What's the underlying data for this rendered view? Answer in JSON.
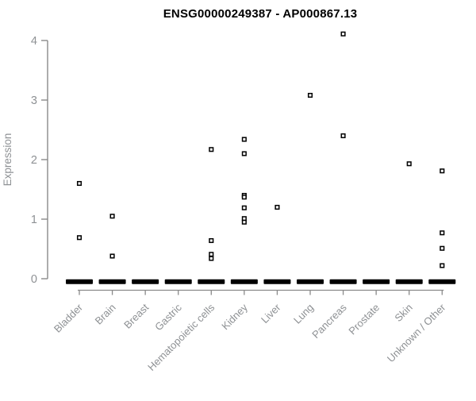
{
  "header": {
    "title": "ENSG00000249387 - AP000867.13"
  },
  "chart_data": {
    "type": "scatter",
    "subtype": "strip-plot",
    "title": "ENSG00000249387 - AP000867.13",
    "xlabel": "",
    "ylabel": "Expression",
    "ylim": [
      0,
      4.3
    ],
    "yticks": [
      0,
      1,
      2,
      3,
      4
    ],
    "grid": false,
    "legend": false,
    "marker": "open-square",
    "categories": [
      "Bladder",
      "Brain",
      "Breast",
      "Gastric",
      "Hematopoietic cells",
      "Kidney",
      "Liver",
      "Lung",
      "Pancreas",
      "Prostate",
      "Skin",
      "Unknown / Other"
    ],
    "series": [
      {
        "category": "Bladder",
        "values": [
          1.6,
          0.69
        ],
        "zero_cluster": true
      },
      {
        "category": "Brain",
        "values": [
          1.05,
          0.38
        ],
        "zero_cluster": true
      },
      {
        "category": "Breast",
        "values": [],
        "zero_cluster": true
      },
      {
        "category": "Gastric",
        "values": [],
        "zero_cluster": true
      },
      {
        "category": "Hematopoietic cells",
        "values": [
          2.17,
          0.64,
          0.41,
          0.34
        ],
        "zero_cluster": true
      },
      {
        "category": "Kidney",
        "values": [
          2.34,
          2.1,
          1.4,
          1.37,
          1.19,
          1.01,
          0.95
        ],
        "zero_cluster": true
      },
      {
        "category": "Liver",
        "values": [
          1.2
        ],
        "zero_cluster": true
      },
      {
        "category": "Lung",
        "values": [
          3.08
        ],
        "zero_cluster": true
      },
      {
        "category": "Pancreas",
        "values": [
          4.11,
          2.4
        ],
        "zero_cluster": true
      },
      {
        "category": "Prostate",
        "values": [],
        "zero_cluster": true
      },
      {
        "category": "Skin",
        "values": [
          1.93
        ],
        "zero_cluster": true
      },
      {
        "category": "Unknown / Other",
        "values": [
          1.81,
          0.77,
          0.51,
          0.22
        ],
        "zero_cluster": true
      }
    ],
    "zero_cluster_note": "each category shows a dense cluster of samples at expression 0, drawn as a thick black dash on the baseline",
    "colors": {
      "point": "#000000",
      "point_fill": "#ffffff",
      "zero_bar": "#000000",
      "axis": "#8a8a8a",
      "tick_label": "#8e9194",
      "axis_label": "#8e9194",
      "title": "#000000",
      "background": "#ffffff"
    }
  }
}
